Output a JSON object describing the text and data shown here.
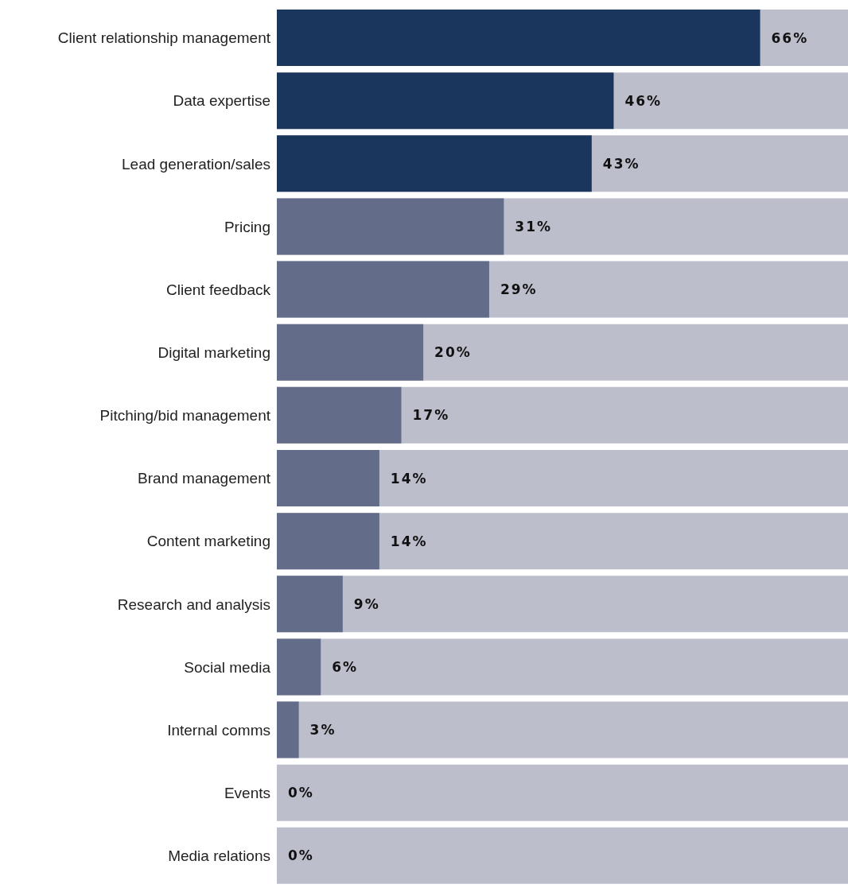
{
  "chart_data": {
    "type": "bar",
    "orientation": "horizontal",
    "categories": [
      "Client relationship management",
      "Data expertise",
      "Lead generation/sales",
      "Pricing",
      "Client feedback",
      "Digital marketing",
      "Pitching/bid management",
      "Brand management",
      "Content marketing",
      "Research and analysis",
      "Social media",
      "Internal comms",
      "Events",
      "Media relations"
    ],
    "values": [
      66,
      46,
      43,
      31,
      29,
      20,
      17,
      14,
      14,
      9,
      6,
      3,
      0,
      0
    ],
    "colors": [
      "#1b365d",
      "#1b365d",
      "#1b365d",
      "#636c89",
      "#636c89",
      "#636c89",
      "#636c89",
      "#636c89",
      "#636c89",
      "#636c89",
      "#636c89",
      "#636c89",
      "#636c89",
      "#636c89"
    ],
    "value_labels": [
      "66%",
      "46%",
      "43%",
      "31%",
      "29%",
      "20%",
      "17%",
      "14%",
      "14%",
      "9%",
      "6%",
      "3%",
      "0%",
      "0%"
    ],
    "xlim": [
      0,
      78
    ],
    "tick_labels": "y"
  }
}
